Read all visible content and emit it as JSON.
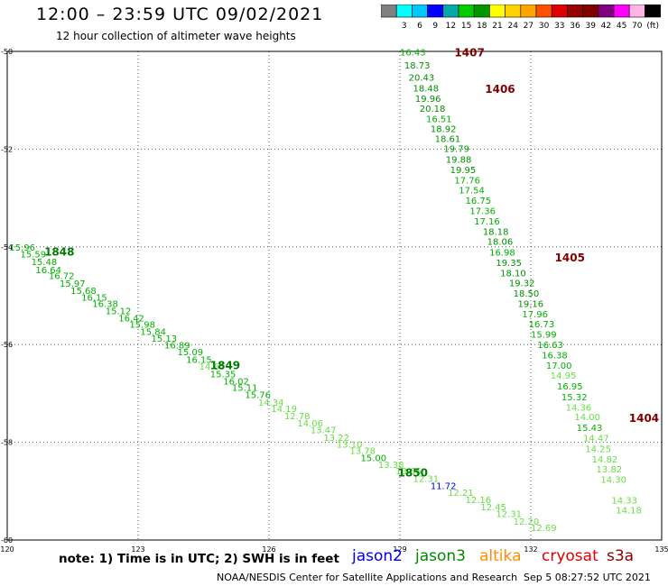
{
  "header": {
    "title": "12:00 – 23:59 UTC 09/02/2021",
    "subtitle": "12 hour collection of altimeter wave heights"
  },
  "scale": {
    "colors": [
      "#808080",
      "#00ffff",
      "#00c8ff",
      "#0000ff",
      "#00aaaa",
      "#00cc00",
      "#009600",
      "#ffff00",
      "#ffd200",
      "#ffa500",
      "#ff5000",
      "#dd0000",
      "#990000",
      "#800000",
      "#800080",
      "#ff00ff",
      "#ffb4e6",
      "#000000"
    ],
    "labels": [
      "3",
      "6",
      "9",
      "12",
      "15",
      "18",
      "21",
      "24",
      "27",
      "30",
      "33",
      "36",
      "39",
      "42",
      "45",
      "70"
    ],
    "unit": "(ft)"
  },
  "chart_data": {
    "type": "scatter",
    "xlim": [
      120,
      135
    ],
    "ylim": [
      -60,
      -50
    ],
    "x_ticks": [
      "120",
      "123",
      "126",
      "129",
      "132",
      "135"
    ],
    "y_ticks": [
      "-50",
      "-52",
      "-54",
      "-56",
      "-58",
      "-60"
    ],
    "grid": true,
    "pass_labels": [
      "1407",
      "1406",
      "1405",
      "1404",
      "1848",
      "1849",
      "1850"
    ],
    "series": [
      {
        "values": [
          16.43,
          18.73,
          20.43,
          18.48,
          19.96,
          20.18,
          16.51,
          18.92,
          18.61,
          19.79,
          19.88,
          19.95,
          17.76,
          17.54,
          16.75,
          17.36,
          17.16,
          18.18,
          18.06,
          16.98,
          19.35,
          18.1,
          19.32,
          18.5,
          19.16,
          17.96,
          16.73,
          15.99,
          16.63,
          16.38,
          17.0,
          14.95,
          16.95,
          15.32,
          14.36,
          14.0,
          15.43,
          14.47,
          14.25,
          14.82,
          13.82,
          14.3,
          14.33,
          14.18
        ]
      },
      {
        "values": [
          15.96,
          15.59,
          15.48,
          16.64,
          16.72,
          15.97,
          15.68,
          16.15,
          16.38,
          15.12,
          16.42,
          15.98,
          15.84,
          15.13,
          16.89,
          15.09,
          16.15,
          14.65,
          15.35,
          16.02,
          15.11,
          15.76,
          14.34,
          14.19,
          12.78,
          14.06,
          13.47,
          13.22,
          13.1,
          13.78,
          15.0,
          13.38,
          13.66,
          12.31,
          11.72,
          12.21,
          12.16,
          12.45,
          12.31,
          12.2,
          12.69
        ]
      }
    ]
  },
  "note": "note:  1) Time is in UTC;  2) SWH is in feet",
  "satellites": [
    "jason2",
    "jason3",
    "altika",
    "cryosat",
    "s3a"
  ],
  "footer": {
    "agency": "NOAA/NESDIS Center for Satellite Applications and Research",
    "timestamp": "Sep  5 08:27:52 UTC 2021"
  }
}
